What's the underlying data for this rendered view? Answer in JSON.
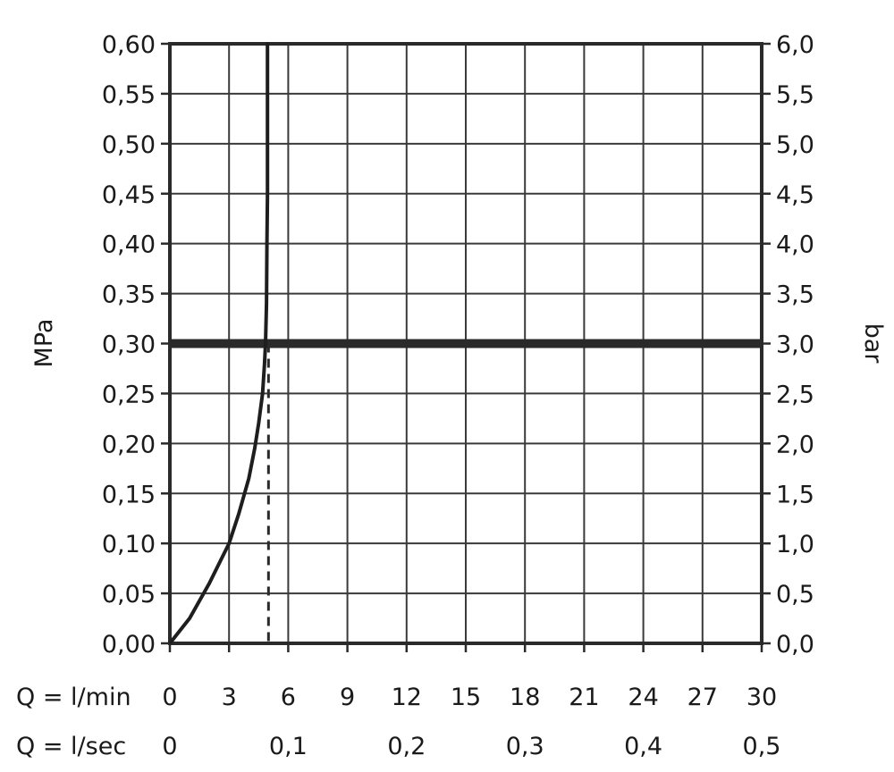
{
  "chart_data": {
    "type": "line",
    "title": "",
    "ylabel_left": "MPa",
    "ylabel_right": "bar",
    "xlabel_min": "Q = l/min",
    "xlabel_sec": "Q = l/sec",
    "ylim_mpa": [
      0,
      0.6
    ],
    "xlim_lmin": [
      0,
      30
    ],
    "grid": true,
    "y_ticks_left": [
      "0,00",
      "0,05",
      "0,10",
      "0,15",
      "0,20",
      "0,25",
      "0,30",
      "0,35",
      "0,40",
      "0,45",
      "0,50",
      "0,55",
      "0,60"
    ],
    "y_ticks_right": [
      "0,0",
      "0,5",
      "1,0",
      "1,5",
      "2,0",
      "2,5",
      "3,0",
      "3,5",
      "4,0",
      "4,5",
      "5,0",
      "5,5",
      "6,0"
    ],
    "x_ticks_lmin": [
      "0",
      "3",
      "6",
      "9",
      "12",
      "15",
      "18",
      "21",
      "24",
      "27",
      "30"
    ],
    "x_ticks_lsec": [
      {
        "label": "0",
        "value_lmin": 0
      },
      {
        "label": "0,1",
        "value_lmin": 6
      },
      {
        "label": "0,2",
        "value_lmin": 12
      },
      {
        "label": "0,3",
        "value_lmin": 18
      },
      {
        "label": "0,4",
        "value_lmin": 24
      },
      {
        "label": "0,5",
        "value_lmin": 30
      }
    ],
    "series": [
      {
        "x": [
          0,
          1,
          2,
          3,
          3.5,
          4,
          4.3,
          4.5,
          4.7,
          4.8,
          4.85,
          4.9,
          4.92,
          4.95,
          4.95,
          4.95
        ],
        "y": [
          0,
          0.025,
          0.06,
          0.1,
          0.13,
          0.165,
          0.195,
          0.22,
          0.25,
          0.28,
          0.3,
          0.34,
          0.4,
          0.45,
          0.55,
          0.6
        ]
      }
    ],
    "reference_line_y": 0.3,
    "reference_dashed_x": 5.0
  }
}
